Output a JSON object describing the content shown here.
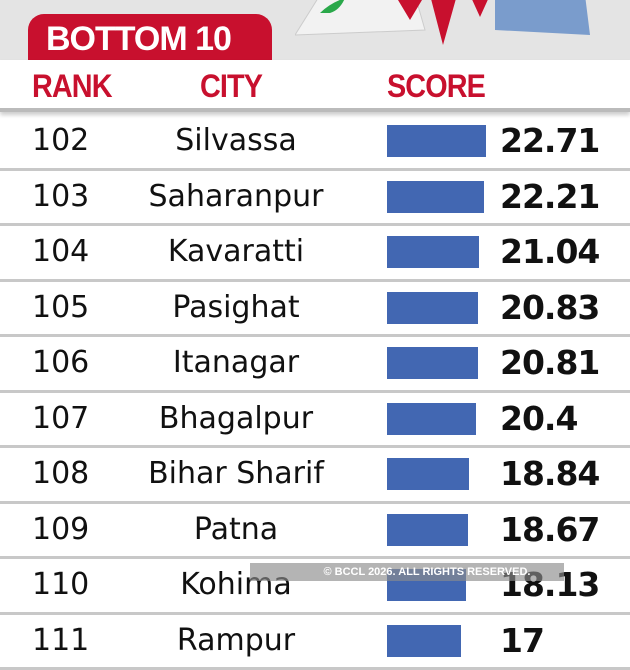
{
  "header": {
    "badge": "BOTTOM 10",
    "col_rank": "RANK",
    "col_city": "CITY",
    "col_score": "SCORE"
  },
  "colors": {
    "accent": "#c8102e",
    "bar": "#4267b2"
  },
  "watermark": "© BCCL 2026. ALL RIGHTS RESERVED.",
  "chart_data": {
    "type": "bar",
    "orientation": "horizontal",
    "columns": [
      "RANK",
      "CITY",
      "SCORE"
    ],
    "ranks": [
      "102",
      "103",
      "104",
      "105",
      "106",
      "107",
      "108",
      "109",
      "110",
      "111"
    ],
    "categories": [
      "Silvassa",
      "Saharanpur",
      "Kavaratti",
      "Pasighat",
      "Itanagar",
      "Bhagalpur",
      "Bihar Sharif",
      "Patna",
      "Kohima",
      "Rampur"
    ],
    "values": [
      22.71,
      22.21,
      21.04,
      20.83,
      20.81,
      20.4,
      18.84,
      18.67,
      18.13,
      17
    ],
    "labels": [
      "22.71",
      "22.21",
      "21.04",
      "20.83",
      "20.81",
      "20.4",
      "18.84",
      "18.67",
      "18.13",
      "17"
    ]
  }
}
